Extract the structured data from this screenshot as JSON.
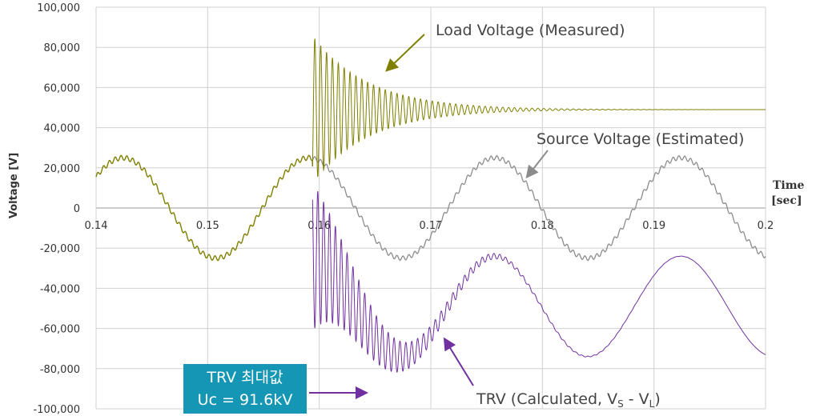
{
  "chart_data": {
    "type": "line",
    "xlabel_line1": "Time",
    "xlabel_line2": "[sec]",
    "ylabel": "Voltage [V]",
    "xlim": [
      0.14,
      0.2
    ],
    "ylim": [
      -100000,
      100000
    ],
    "x_ticks": [
      "0.14",
      "0.15",
      "0.16",
      "0.17",
      "0.18",
      "0.19",
      "0.2"
    ],
    "y_ticks": [
      "100,000",
      "80,000",
      "60,000",
      "40,000",
      "20,000",
      "0",
      "-20,000",
      "-40,000",
      "-60,000",
      "-80,000",
      "-100,000"
    ],
    "grid": true,
    "fault_time": 0.1594,
    "frequency_hz": 60,
    "series": [
      {
        "name": "Load Voltage (Measured)",
        "color": "#7f7f00",
        "pre_amplitude": 25000,
        "post_dc_level": 49000,
        "peak": 84000,
        "decay_time_constant": 0.005
      },
      {
        "name": "Source Voltage (Estimated)",
        "color": "#8c8c8c",
        "amplitude": 25000
      },
      {
        "name": "TRV (Calculated, VS - VL)",
        "color": "#7030a0",
        "peak": -91600
      }
    ],
    "annotations": [
      {
        "text": "Load Voltage (Measured)"
      },
      {
        "text": "Source Voltage (Estimated)"
      },
      {
        "text_main": "TRV (Calculated, V",
        "sub1": "S",
        "text_mid": " - V",
        "sub2": "L",
        "text_end": ")"
      }
    ],
    "callout": {
      "line1": "TRV 최대값",
      "line2": "Uc = 91.6kV"
    }
  }
}
